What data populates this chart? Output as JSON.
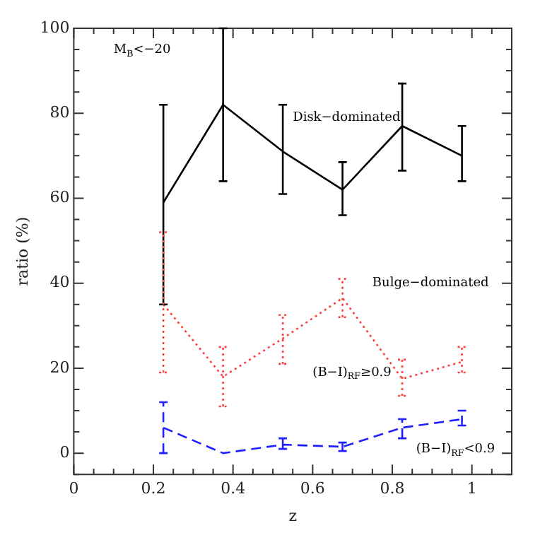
{
  "chart_data": {
    "type": "line",
    "xlabel": "z",
    "ylabel": "ratio (%)",
    "x": [
      0.225,
      0.375,
      0.525,
      0.675,
      0.825,
      0.975
    ],
    "xlim": [
      0,
      1.1
    ],
    "ylim": [
      -5,
      100
    ],
    "xticks": [
      0,
      {
        "value": 0.05,
        "label": null
      },
      {
        "value": 0.1,
        "label": null
      },
      {
        "value": 0.15,
        "label": null
      },
      0.2,
      {
        "value": 0.25,
        "label": null
      },
      {
        "value": 0.3,
        "label": null
      },
      {
        "value": 0.35,
        "label": null
      },
      0.4,
      {
        "value": 0.45,
        "label": null
      },
      {
        "value": 0.5,
        "label": null
      },
      {
        "value": 0.55,
        "label": null
      },
      0.6,
      {
        "value": 0.65,
        "label": null
      },
      {
        "value": 0.7,
        "label": null
      },
      {
        "value": 0.75,
        "label": null
      },
      0.8,
      {
        "value": 0.85,
        "label": null
      },
      {
        "value": 0.9,
        "label": null
      },
      {
        "value": 0.95,
        "label": null
      },
      1,
      {
        "value": 1.05,
        "label": null
      }
    ],
    "yticks": [
      {
        "value": -5,
        "label": null
      },
      0,
      {
        "value": 5,
        "label": null
      },
      {
        "value": 10,
        "label": null
      },
      {
        "value": 15,
        "label": null
      },
      20,
      {
        "value": 25,
        "label": null
      },
      {
        "value": 30,
        "label": null
      },
      {
        "value": 35,
        "label": null
      },
      40,
      {
        "value": 45,
        "label": null
      },
      {
        "value": 50,
        "label": null
      },
      {
        "value": 55,
        "label": null
      },
      60,
      {
        "value": 65,
        "label": null
      },
      {
        "value": 70,
        "label": null
      },
      {
        "value": 75,
        "label": null
      },
      80,
      {
        "value": 85,
        "label": null
      },
      {
        "value": 90,
        "label": null
      },
      {
        "value": 95,
        "label": null
      },
      100
    ],
    "grid": false,
    "marker": "none",
    "legend": false,
    "series": [
      {
        "name": "Disk−dominated",
        "color": "#000000",
        "line_style": "solid",
        "values": [
          59,
          82,
          71,
          62,
          77,
          70
        ],
        "errors": [
          [
            35,
            82
          ],
          [
            64,
            100
          ],
          [
            61,
            82
          ],
          [
            56,
            68.5
          ],
          [
            66.5,
            87
          ],
          [
            64,
            77
          ]
        ]
      },
      {
        "name": "(B−I)$_{RF}$≥0.9",
        "color": "#ff4040",
        "line_style": "dotted",
        "values": [
          35,
          18,
          27,
          36.5,
          17.5,
          21.5
        ],
        "errors": [
          [
            19,
            52
          ],
          [
            11,
            25
          ],
          [
            21,
            32.5
          ],
          [
            32,
            41
          ],
          [
            13.5,
            22
          ],
          [
            19,
            25
          ]
        ]
      },
      {
        "name": "(B−I)$_{RF}$<0.9",
        "color": "#2020ff",
        "line_style": "dashed",
        "values": [
          6,
          0,
          2,
          1.5,
          6,
          8
        ],
        "errors": [
          [
            0,
            12
          ],
          null,
          [
            1,
            3.5
          ],
          [
            0.5,
            2.5
          ],
          [
            3.5,
            8
          ],
          [
            6.5,
            10
          ]
        ]
      }
    ],
    "annotations": [
      "M$_{B}$<−20",
      "Bulge−dominated"
    ]
  }
}
